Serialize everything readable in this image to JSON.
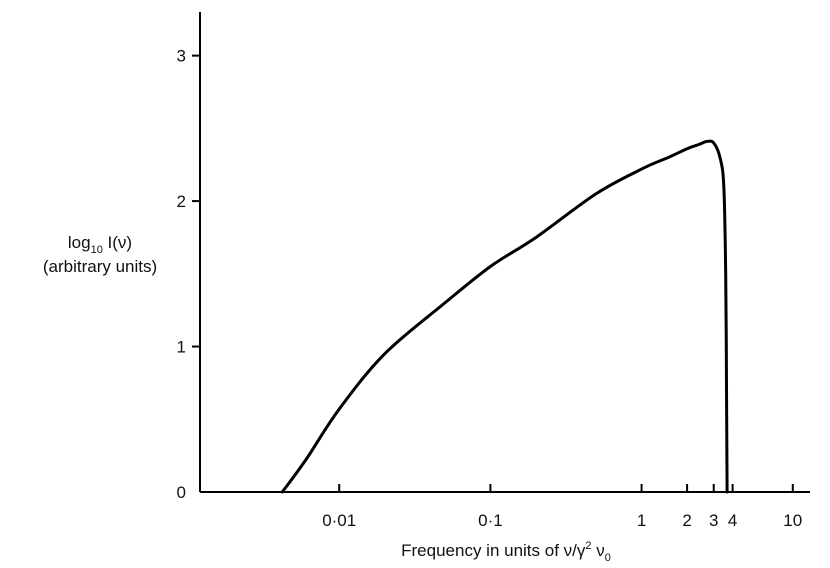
{
  "chart_data": {
    "type": "line",
    "title": "",
    "xlabel": "Frequency in units of ν/γ² ν₀",
    "xlabel_parts": {
      "prefix": "Frequency in units of ν/γ",
      "sup": "2",
      "mid": " ν",
      "sub": "0"
    },
    "ylabel": "log₁₀ I(ν) (arbitrary units)",
    "ylabel_parts": {
      "line1_prefix": "log",
      "line1_sub": "10",
      "line1_suffix": " I(ν)",
      "line2": "(arbitrary units)"
    },
    "x_scale": "log",
    "xlim": [
      0.0012,
      13
    ],
    "ylim": [
      0,
      3.3
    ],
    "x_ticks": [
      {
        "value": 0.01,
        "label": "0·01"
      },
      {
        "value": 0.1,
        "label": "0·1"
      },
      {
        "value": 1,
        "label": "1"
      },
      {
        "value": 2,
        "label": "2"
      },
      {
        "value": 3,
        "label": "3"
      },
      {
        "value": 4,
        "label": "4"
      },
      {
        "value": 10,
        "label": "10"
      }
    ],
    "y_ticks": [
      {
        "value": 0,
        "label": "0"
      },
      {
        "value": 1,
        "label": "1"
      },
      {
        "value": 2,
        "label": "2"
      },
      {
        "value": 3,
        "label": "3"
      }
    ],
    "grid": false,
    "legend": "none",
    "series": [
      {
        "color": "#000000",
        "x": [
          0.0042,
          0.006,
          0.01,
          0.02,
          0.05,
          0.1,
          0.2,
          0.5,
          1.0,
          1.5,
          2.0,
          2.4,
          2.7,
          3.0,
          3.3,
          3.5,
          3.6,
          3.65,
          3.68
        ],
        "y": [
          0.0,
          0.22,
          0.57,
          0.95,
          1.3,
          1.55,
          1.75,
          2.05,
          2.22,
          2.3,
          2.36,
          2.39,
          2.41,
          2.4,
          2.3,
          2.1,
          1.5,
          0.6,
          0.0
        ]
      }
    ]
  }
}
